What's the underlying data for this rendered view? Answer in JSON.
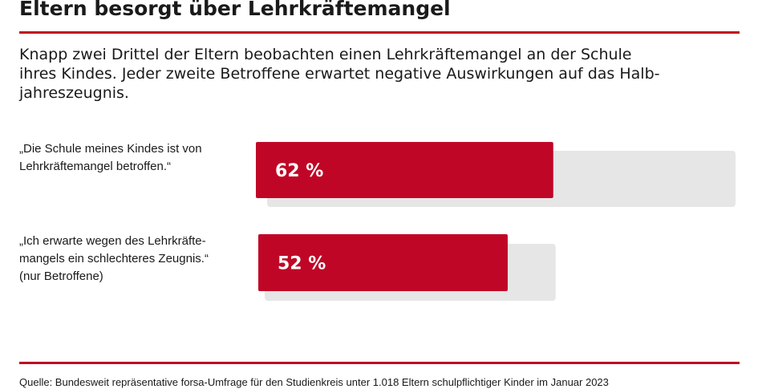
{
  "title": "Eltern besorgt über Lehrkräftemangel",
  "subtitle": {
    "lines": [
      "Knapp zwei Drittel der Eltern beobachten einen Lehrkräftemangel an der Schule",
      "ihres Kindes. Jeder zweite Betroffene erwartet negative Auswirkungen auf das Halb-",
      "jahreszeugnis."
    ]
  },
  "colors": {
    "accent": "#c00626",
    "track": "#e6e6e6",
    "text": "#1a1a1a"
  },
  "chart_data": {
    "type": "bar",
    "orientation": "horizontal",
    "unit": "%",
    "ylim": [
      0,
      100
    ],
    "categories": [
      [
        "„Die Schule meines Kindes ist von",
        "Lehrkräftemangel betroffen.“"
      ],
      [
        "„Ich erwarte wegen des Lehrkräfte-",
        "mangels ein schlechteres Zeugnis.“",
        "(nur Betroffene)"
      ]
    ],
    "values": [
      62,
      52
    ],
    "data_labels": [
      "62 %",
      "52 %"
    ],
    "subsets": [
      {
        "label": "Die Schule meines Kindes ist von Lehrkräftemangel betroffen",
        "base": 100,
        "value": 62
      },
      {
        "label": "Ich erwarte wegen des Lehrkräftemangels ein schlechteres Zeugnis (nur Betroffene)",
        "base": 62,
        "value": 52
      }
    ]
  },
  "source": "Quelle: Bundesweit repräsentative forsa-Umfrage für den Studienkreis unter 1.018 Eltern schulpflichtiger Kinder im Januar 2023"
}
